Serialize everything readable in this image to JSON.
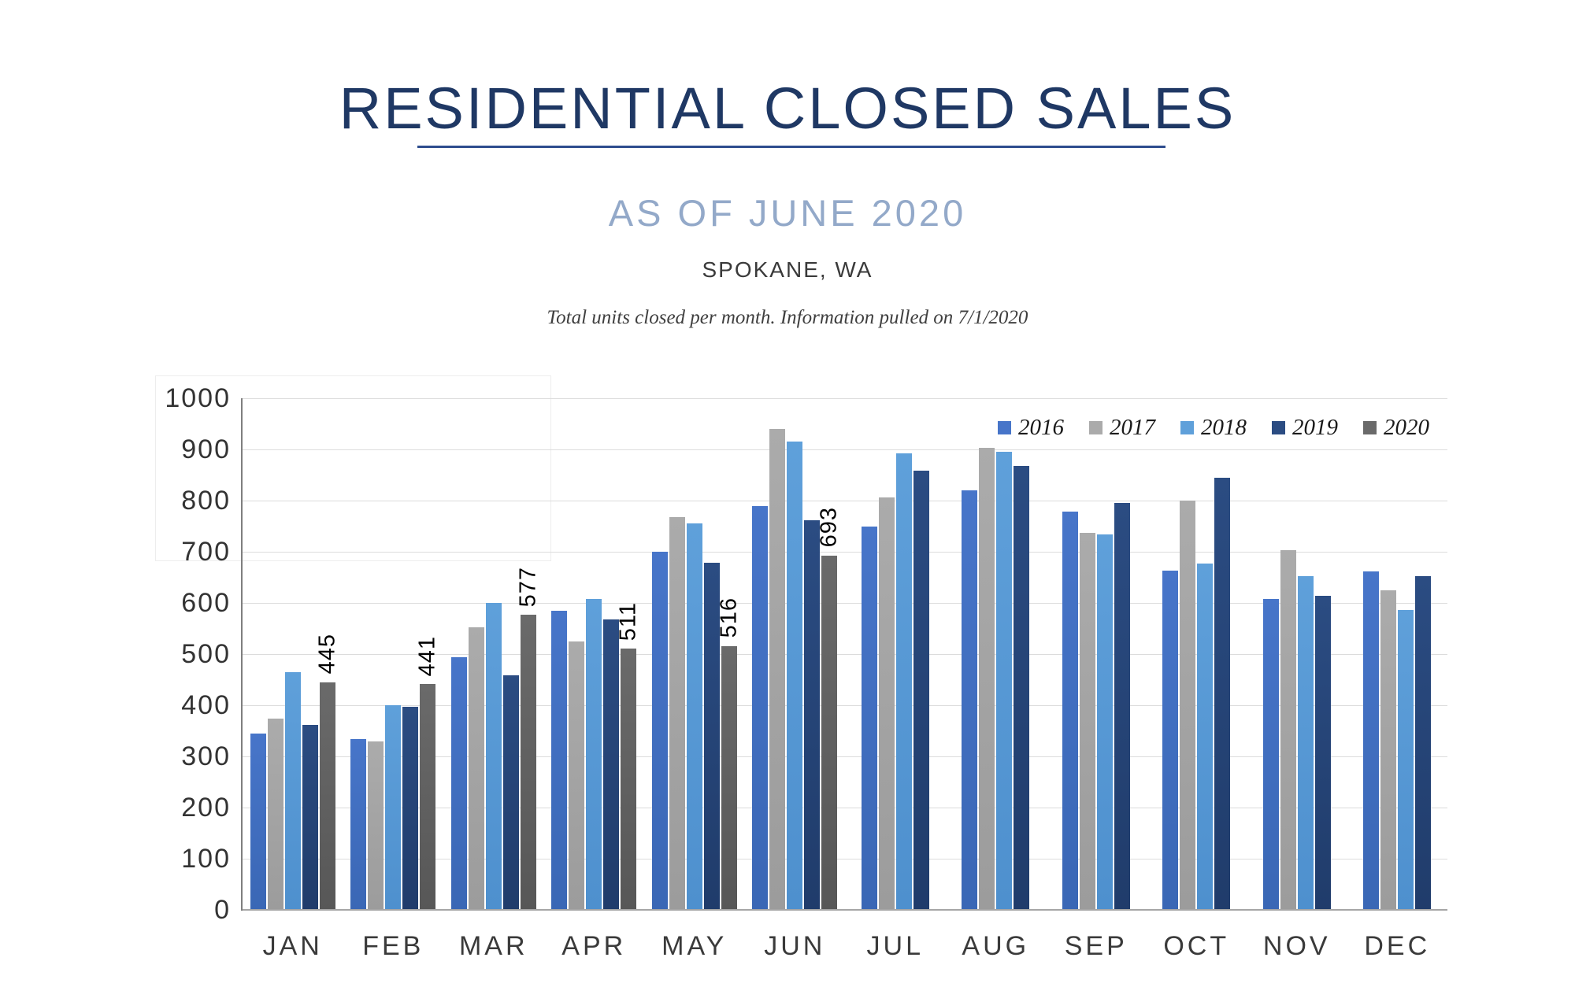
{
  "header": {
    "title": "RESIDENTIAL CLOSED SALES",
    "subtitle": "AS OF JUNE 2020",
    "location": "SPOKANE, WA",
    "note": "Total units closed per month.  Information pulled on 7/1/2020"
  },
  "chart_data": {
    "type": "bar",
    "title": "Residential Closed Sales by month, Spokane WA, 2016-2020",
    "categories": [
      "JAN",
      "FEB",
      "MAR",
      "APR",
      "MAY",
      "JUN",
      "JUL",
      "AUG",
      "SEP",
      "OCT",
      "NOV",
      "DEC"
    ],
    "series": [
      {
        "name": "2016",
        "color": "#4775C9",
        "color2": "#3A67B5",
        "values": [
          345,
          334,
          494,
          584,
          700,
          790,
          750,
          820,
          778,
          663,
          607,
          662
        ]
      },
      {
        "name": "2017",
        "color": "#ABABAB",
        "color2": "#9C9C9C",
        "values": [
          374,
          330,
          553,
          524,
          768,
          940,
          806,
          903,
          737,
          800,
          703,
          625
        ]
      },
      {
        "name": "2018",
        "color": "#5FA0DA",
        "color2": "#4E90CE",
        "values": [
          464,
          400,
          600,
          607,
          756,
          916,
          893,
          895,
          734,
          677,
          653,
          586
        ]
      },
      {
        "name": "2019",
        "color": "#2B4C82",
        "color2": "#203C6B",
        "values": [
          361,
          397,
          458,
          567,
          679,
          762,
          858,
          868,
          796,
          845,
          614,
          652
        ]
      },
      {
        "name": "2020",
        "color": "#6A6A6A",
        "color2": "#575757",
        "show_labels": true,
        "values": [
          445,
          441,
          577,
          511,
          516,
          693,
          null,
          null,
          null,
          null,
          null,
          null
        ]
      }
    ],
    "ylim": [
      0,
      1000
    ],
    "ytick_interval": 100,
    "grid": true,
    "legend_position": "top-right",
    "accent_colors": {
      "title_navy": "#1F3864",
      "subtitle_blue": "#93A9C9"
    }
  }
}
